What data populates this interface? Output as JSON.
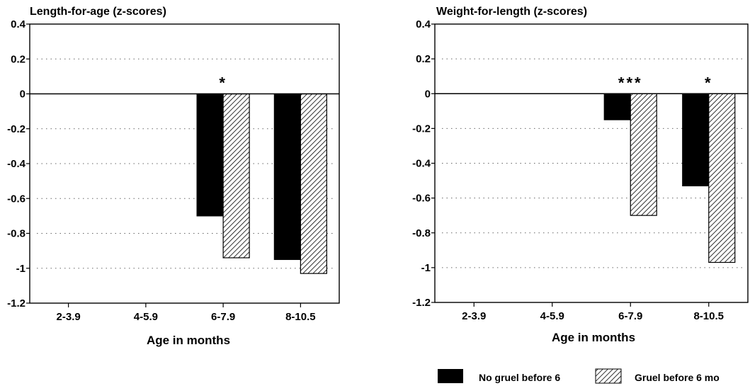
{
  "chart_data": [
    {
      "type": "bar",
      "title": "Length-for-age (z-scores)",
      "xlabel": "Age in months",
      "ylabel": "",
      "categories": [
        "2-3.9",
        "4-5.9",
        "6-7.9",
        "8-10.5"
      ],
      "series": [
        {
          "name": "No gruel before 6",
          "values": [
            null,
            null,
            -0.7,
            -0.95
          ]
        },
        {
          "name": "Gruel before 6 mo",
          "values": [
            null,
            null,
            -0.94,
            -1.03
          ]
        }
      ],
      "ylim": [
        -1.2,
        0.4
      ],
      "yticks": [
        "0.4",
        "0.2",
        "0",
        "-0.2",
        "-0.4",
        "-0.6",
        "-0.8",
        "-1",
        "-1.2"
      ],
      "yticks_values": [
        0.4,
        0.2,
        0,
        -0.2,
        -0.4,
        -0.6,
        -0.8,
        -1,
        -1.2
      ],
      "annotations": [
        {
          "category": "6-7.9",
          "text": "*"
        }
      ],
      "grid": "dotted horizontal"
    },
    {
      "type": "bar",
      "title": "Weight-for-length (z-scores)",
      "xlabel": "Age in months",
      "ylabel": "",
      "categories": [
        "2-3.9",
        "4-5.9",
        "6-7.9",
        "8-10.5"
      ],
      "series": [
        {
          "name": "No gruel before 6",
          "values": [
            null,
            null,
            -0.15,
            -0.53
          ]
        },
        {
          "name": "Gruel before 6 mo",
          "values": [
            null,
            null,
            -0.7,
            -0.97
          ]
        }
      ],
      "ylim": [
        -1.2,
        0.4
      ],
      "yticks": [
        "0.4",
        "0.2",
        "0",
        "-0.2",
        "-0.4",
        "-0.6",
        "-0.8",
        "-1",
        "-1.2"
      ],
      "yticks_values": [
        0.4,
        0.2,
        0,
        -0.2,
        -0.4,
        -0.6,
        -0.8,
        -1,
        -1.2
      ],
      "annotations": [
        {
          "category": "6-7.9",
          "text": "***"
        },
        {
          "category": "8-10.5",
          "text": "*"
        }
      ],
      "grid": "dotted horizontal"
    }
  ],
  "legend": {
    "placement": "bottom-right",
    "items": [
      {
        "label": "No gruel before 6",
        "fill": "solid",
        "color": "#000000"
      },
      {
        "label": "Gruel before 6 mo",
        "fill": "hatched",
        "color": "#000000"
      }
    ]
  }
}
